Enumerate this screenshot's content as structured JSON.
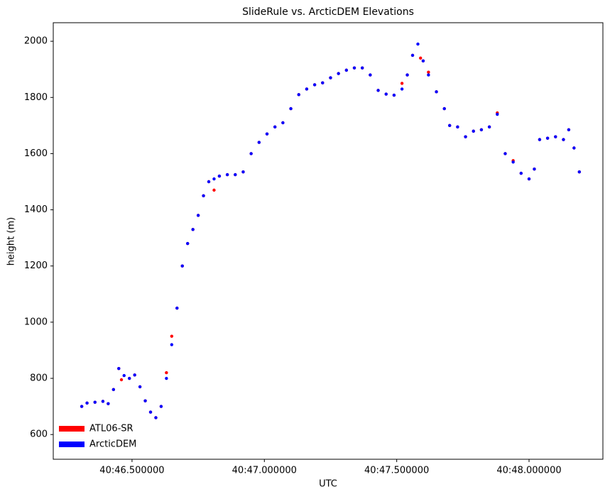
{
  "chart_data": {
    "type": "scatter",
    "title": "SlideRule vs. ArcticDEM Elevations",
    "xlabel": "UTC",
    "ylabel": "height (m)",
    "xlim": [
      46.2024,
      48.279
    ],
    "ylim": [
      512,
      2066
    ],
    "xticks": [
      {
        "value": 46.5,
        "label": "40:46.500000"
      },
      {
        "value": 47.0,
        "label": "40:47.000000"
      },
      {
        "value": 47.5,
        "label": "40:47.500000"
      },
      {
        "value": 48.0,
        "label": "40:48.000000"
      }
    ],
    "yticks": [
      600,
      800,
      1000,
      1200,
      1400,
      1600,
      1800,
      2000
    ],
    "grid": false,
    "legend": "lower left",
    "series": [
      {
        "name": "ATL06-SR",
        "color": "#ff0000",
        "x": [
          46.31,
          46.33,
          46.36,
          46.39,
          46.41,
          46.43,
          46.45,
          46.46,
          46.49,
          46.51,
          46.53,
          46.55,
          46.57,
          46.59,
          46.61,
          46.63,
          46.65,
          46.67,
          46.69,
          46.71,
          46.73,
          46.75,
          46.77,
          46.79,
          46.81,
          46.83,
          46.86,
          46.89,
          46.92,
          46.95,
          46.98,
          47.01,
          47.04,
          47.07,
          47.1,
          47.13,
          47.16,
          47.19,
          47.22,
          47.25,
          47.28,
          47.31,
          47.34,
          47.37,
          47.4,
          47.43,
          47.46,
          47.49,
          47.52,
          47.54,
          47.56,
          47.59,
          47.6,
          47.62,
          47.65,
          47.68,
          47.7,
          47.73,
          47.76,
          47.79,
          47.82,
          47.85,
          47.88,
          47.91,
          47.94,
          47.97,
          48.0,
          48.02,
          48.04,
          48.07,
          48.1,
          48.13,
          48.15,
          48.17,
          48.19
        ],
        "values": [
          700,
          712,
          715,
          718,
          710,
          760,
          835,
          795,
          800,
          812,
          770,
          720,
          680,
          660,
          700,
          820,
          950,
          1050,
          1200,
          1280,
          1330,
          1380,
          1450,
          1500,
          1470,
          1520,
          1525,
          1525,
          1535,
          1600,
          1640,
          1670,
          1695,
          1710,
          1760,
          1810,
          1830,
          1845,
          1852,
          1870,
          1885,
          1897,
          1905,
          1905,
          1880,
          1825,
          1812,
          1808,
          1850,
          1880,
          1950,
          1940,
          1930,
          1890,
          1820,
          1760,
          1700,
          1695,
          1660,
          1680,
          1685,
          1695,
          1745,
          1600,
          1575,
          1530,
          1510,
          1545,
          1650,
          1655,
          1660,
          1650,
          1685,
          1620,
          1535
        ]
      },
      {
        "name": "ArcticDEM",
        "color": "#0000ff",
        "x": [
          46.31,
          46.33,
          46.36,
          46.39,
          46.41,
          46.43,
          46.45,
          46.47,
          46.49,
          46.51,
          46.53,
          46.55,
          46.57,
          46.59,
          46.61,
          46.63,
          46.65,
          46.67,
          46.69,
          46.71,
          46.73,
          46.75,
          46.77,
          46.79,
          46.81,
          46.83,
          46.86,
          46.89,
          46.92,
          46.95,
          46.98,
          47.01,
          47.04,
          47.07,
          47.1,
          47.13,
          47.16,
          47.19,
          47.22,
          47.25,
          47.28,
          47.31,
          47.34,
          47.37,
          47.4,
          47.43,
          47.46,
          47.49,
          47.52,
          47.54,
          47.56,
          47.58,
          47.6,
          47.62,
          47.65,
          47.68,
          47.7,
          47.73,
          47.76,
          47.79,
          47.82,
          47.85,
          47.88,
          47.91,
          47.94,
          47.97,
          48.0,
          48.02,
          48.04,
          48.07,
          48.1,
          48.13,
          48.15,
          48.17,
          48.19
        ],
        "values": [
          700,
          712,
          715,
          718,
          710,
          760,
          835,
          810,
          800,
          812,
          770,
          720,
          680,
          660,
          700,
          800,
          920,
          1050,
          1200,
          1280,
          1330,
          1380,
          1450,
          1500,
          1510,
          1520,
          1525,
          1525,
          1535,
          1600,
          1640,
          1670,
          1695,
          1710,
          1760,
          1810,
          1830,
          1845,
          1852,
          1870,
          1885,
          1897,
          1905,
          1905,
          1880,
          1825,
          1812,
          1808,
          1830,
          1880,
          1950,
          1990,
          1930,
          1880,
          1820,
          1760,
          1700,
          1695,
          1660,
          1680,
          1685,
          1695,
          1740,
          1600,
          1570,
          1530,
          1510,
          1545,
          1650,
          1655,
          1660,
          1650,
          1685,
          1620,
          1535
        ]
      }
    ]
  }
}
